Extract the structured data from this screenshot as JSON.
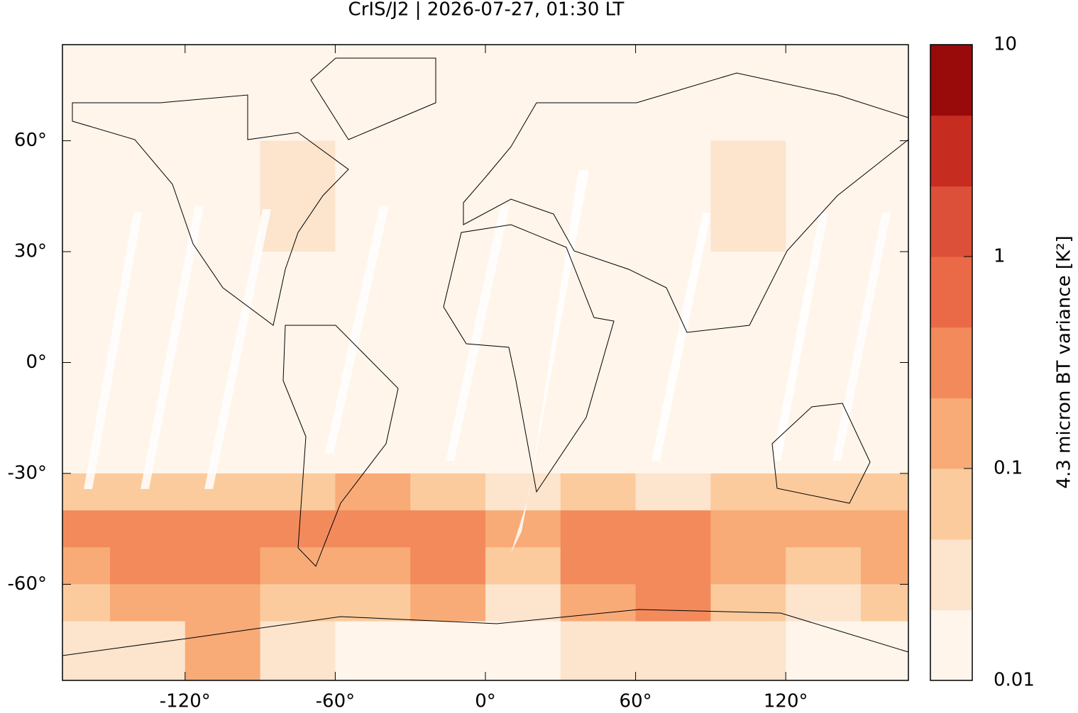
{
  "chart_data": {
    "type": "heatmap",
    "title": "CrIS/J2 | 2026-07-27, 01:30 LT",
    "xlim": [
      -169,
      169
    ],
    "ylim": [
      -86,
      86
    ],
    "xticks": [
      {
        "value": -120,
        "label": "-120°"
      },
      {
        "value": -60,
        "label": "-60°"
      },
      {
        "value": 0,
        "label": "0°"
      },
      {
        "value": 60,
        "label": "60°"
      },
      {
        "value": 120,
        "label": "120°"
      }
    ],
    "yticks": [
      {
        "value": 60,
        "label": "60°"
      },
      {
        "value": 30,
        "label": "30°"
      },
      {
        "value": 0,
        "label": "0°"
      },
      {
        "value": -30,
        "label": "-30°"
      },
      {
        "value": -60,
        "label": "-60°"
      }
    ],
    "lon_edges": [
      -169,
      -150,
      -120,
      -90,
      -60,
      -30,
      0,
      30,
      60,
      90,
      120,
      150,
      169
    ],
    "lat_edges": [
      86,
      60,
      30,
      0,
      -30,
      -40,
      -50,
      -60,
      -70,
      -86
    ],
    "values": [
      [
        0.015,
        0.015,
        0.015,
        0.015,
        0.015,
        0.015,
        0.015,
        0.015,
        0.015,
        0.015,
        0.015,
        0.015
      ],
      [
        0.015,
        0.015,
        0.015,
        0.03,
        0.02,
        0.015,
        0.015,
        0.02,
        0.015,
        0.03,
        0.02,
        0.015
      ],
      [
        0.02,
        0.02,
        0.02,
        0.02,
        0.02,
        0.02,
        0.02,
        0.02,
        0.02,
        0.02,
        0.02,
        0.02
      ],
      [
        0.015,
        0.015,
        0.015,
        0.015,
        0.015,
        0.015,
        0.015,
        0.015,
        0.015,
        0.015,
        0.015,
        0.015
      ],
      [
        0.06,
        0.05,
        0.06,
        0.08,
        0.1,
        0.06,
        0.03,
        0.05,
        0.04,
        0.05,
        0.06,
        0.05
      ],
      [
        0.3,
        0.25,
        0.3,
        0.4,
        0.3,
        0.4,
        0.1,
        0.3,
        0.25,
        0.1,
        0.15,
        0.2
      ],
      [
        0.15,
        0.25,
        0.3,
        0.2,
        0.15,
        0.35,
        0.08,
        0.3,
        0.4,
        0.1,
        0.08,
        0.1
      ],
      [
        0.08,
        0.1,
        0.1,
        0.05,
        0.05,
        0.2,
        0.04,
        0.1,
        0.25,
        0.05,
        0.03,
        0.06
      ],
      [
        0.03,
        0.04,
        0.12,
        0.03,
        0.02,
        0.02,
        0.02,
        0.03,
        0.03,
        0.03,
        0.02,
        0.02
      ]
    ],
    "colorbar": {
      "label": "4.3 micron BT variance [K²]",
      "log_scale": true,
      "lim": [
        0.01,
        10
      ],
      "levels": [
        0.01,
        0.0215,
        0.0464,
        0.1,
        0.215,
        0.464,
        1,
        2.15,
        4.64,
        10
      ],
      "colors": [
        "#fff5eb",
        "#fce4cd",
        "#fbcb9d",
        "#f8ab77",
        "#f38a5c",
        "#ea6a47",
        "#dc4f38",
        "#c72c20",
        "#990a0a"
      ],
      "ticks": [
        0.01,
        0.1,
        1,
        10
      ]
    }
  }
}
